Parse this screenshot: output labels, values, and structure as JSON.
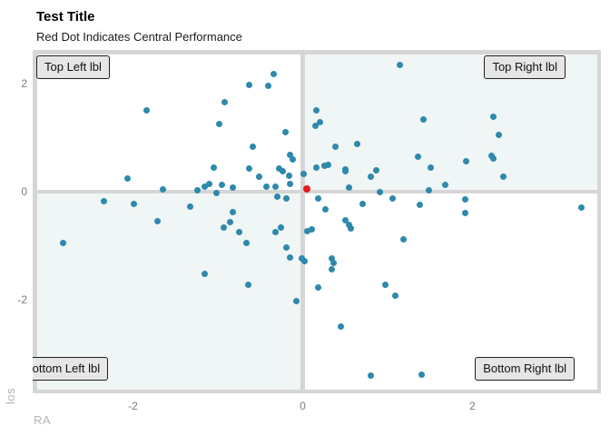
{
  "header": {
    "title": "Test Title",
    "subtitle": "Red Dot Indicates Central Performance"
  },
  "quadrant_labels": {
    "top_left": "Top Left lbl",
    "top_right": "Top Right lbl",
    "bottom_left": "Bottom Left lbl",
    "bottom_right": "Bottom Right lbl"
  },
  "axes": {
    "x_label": "RA",
    "y_label": "los",
    "x_ticks": [
      -2,
      0,
      2
    ],
    "y_ticks": [
      2,
      0,
      -2
    ]
  },
  "colors": {
    "point": "#2e89ac",
    "center_point": "#e31a1c",
    "grid_line": "#d6d6d6",
    "quadrant_tint": "#f0f5f5",
    "quadrant_plain": "#ffffff",
    "tick_label": "#7c7c7c",
    "axis_title": "#b3b3b3",
    "label_box_bg": "#e6e6e6",
    "label_box_border": "#1f1f1f"
  },
  "chart_data": {
    "type": "scatter",
    "title": "Test Title",
    "subtitle": "Red Dot Indicates Central Performance",
    "xlabel": "RA",
    "ylabel": "los",
    "xlim": [
      -3.2,
      3.5
    ],
    "ylim": [
      -3.75,
      2.6
    ],
    "x_ticks": [
      -2,
      0,
      2
    ],
    "y_ticks": [
      -2,
      0,
      2
    ],
    "grid": "reference lines at x=0 and y=0 plus panel border, thick light gray",
    "legend_position": "none",
    "quadrant_shading": [
      "top_right",
      "bottom_left"
    ],
    "series": [
      {
        "name": "performance points",
        "color": "#2e89ac",
        "marker_size": 7,
        "points": [
          [
            1.14,
            2.35
          ],
          [
            -0.63,
            1.97
          ],
          [
            -0.41,
            1.95
          ],
          [
            -0.34,
            2.17
          ],
          [
            -1.84,
            1.5
          ],
          [
            -0.92,
            1.65
          ],
          [
            -0.98,
            1.25
          ],
          [
            -0.2,
            1.1
          ],
          [
            -0.59,
            0.83
          ],
          [
            2.31,
            1.05
          ],
          [
            2.25,
            1.38
          ],
          [
            -0.15,
            0.68
          ],
          [
            -0.12,
            0.6
          ],
          [
            0.16,
            1.5
          ],
          [
            0.2,
            1.28
          ],
          [
            0.15,
            1.22
          ],
          [
            0.39,
            0.83
          ],
          [
            0.64,
            0.88
          ],
          [
            1.42,
            1.33
          ],
          [
            0.01,
            0.33
          ],
          [
            -2.06,
            0.25
          ],
          [
            -1.1,
            0.15
          ],
          [
            -0.95,
            0.12
          ],
          [
            -0.32,
            0.1
          ],
          [
            -0.15,
            0.15
          ],
          [
            0.26,
            0.48
          ],
          [
            0.3,
            0.5
          ],
          [
            0.5,
            0.37
          ],
          [
            0.8,
            0.27
          ],
          [
            1.36,
            0.65
          ],
          [
            1.93,
            0.57
          ],
          [
            2.22,
            0.67
          ],
          [
            2.25,
            0.62
          ],
          [
            2.36,
            0.27
          ],
          [
            1.51,
            0.45
          ],
          [
            -1.05,
            0.45
          ],
          [
            -0.63,
            0.43
          ],
          [
            -0.51,
            0.27
          ],
          [
            -0.28,
            0.43
          ],
          [
            -0.24,
            0.37
          ],
          [
            -0.16,
            0.3
          ],
          [
            0.16,
            0.45
          ],
          [
            0.5,
            0.42
          ],
          [
            0.87,
            0.4
          ],
          [
            1.68,
            0.13
          ],
          [
            1.49,
            0.03
          ],
          [
            0.91,
            0.0
          ],
          [
            0.55,
            0.08
          ],
          [
            -1.65,
            0.05
          ],
          [
            -1.24,
            0.02
          ],
          [
            -1.16,
            0.1
          ],
          [
            -1.02,
            -0.02
          ],
          [
            -0.82,
            0.07
          ],
          [
            -0.43,
            0.1
          ],
          [
            -0.3,
            -0.1
          ],
          [
            -0.19,
            -0.12
          ],
          [
            0.18,
            -0.13
          ],
          [
            0.27,
            -0.33
          ],
          [
            -2.34,
            -0.18
          ],
          [
            -1.99,
            -0.22
          ],
          [
            -1.33,
            -0.27
          ],
          [
            -1.71,
            -0.55
          ],
          [
            -0.82,
            -0.37
          ],
          [
            -0.93,
            -0.67
          ],
          [
            -0.86,
            -0.57
          ],
          [
            -0.75,
            -0.75
          ],
          [
            -0.32,
            -0.75
          ],
          [
            -0.26,
            -0.67
          ],
          [
            -0.66,
            -0.95
          ],
          [
            -0.19,
            -1.03
          ],
          [
            -0.01,
            -1.23
          ],
          [
            0.02,
            -1.28
          ],
          [
            -0.15,
            -1.22
          ],
          [
            0.05,
            -0.73
          ],
          [
            0.11,
            -0.7
          ],
          [
            0.34,
            -1.23
          ],
          [
            0.36,
            -1.32
          ],
          [
            0.34,
            -1.43
          ],
          [
            0.5,
            -0.53
          ],
          [
            0.55,
            -0.62
          ],
          [
            0.57,
            -0.68
          ],
          [
            0.71,
            -0.22
          ],
          [
            1.19,
            -0.88
          ],
          [
            1.06,
            -0.13
          ],
          [
            1.38,
            -0.25
          ],
          [
            1.91,
            -0.15
          ],
          [
            1.91,
            -0.4
          ],
          [
            3.28,
            -0.3
          ],
          [
            -2.82,
            -0.95
          ],
          [
            -1.16,
            -1.52
          ],
          [
            -0.64,
            -1.73
          ],
          [
            -0.07,
            -2.03
          ],
          [
            0.18,
            -1.78
          ],
          [
            0.97,
            -1.72
          ],
          [
            1.09,
            -1.92
          ],
          [
            0.45,
            -2.5
          ],
          [
            0.8,
            -3.4
          ],
          [
            1.4,
            -3.38
          ]
        ]
      },
      {
        "name": "central performance (red dot)",
        "color": "#e31a1c",
        "marker_size": 8,
        "points": [
          [
            0.05,
            0.05
          ]
        ]
      }
    ]
  }
}
